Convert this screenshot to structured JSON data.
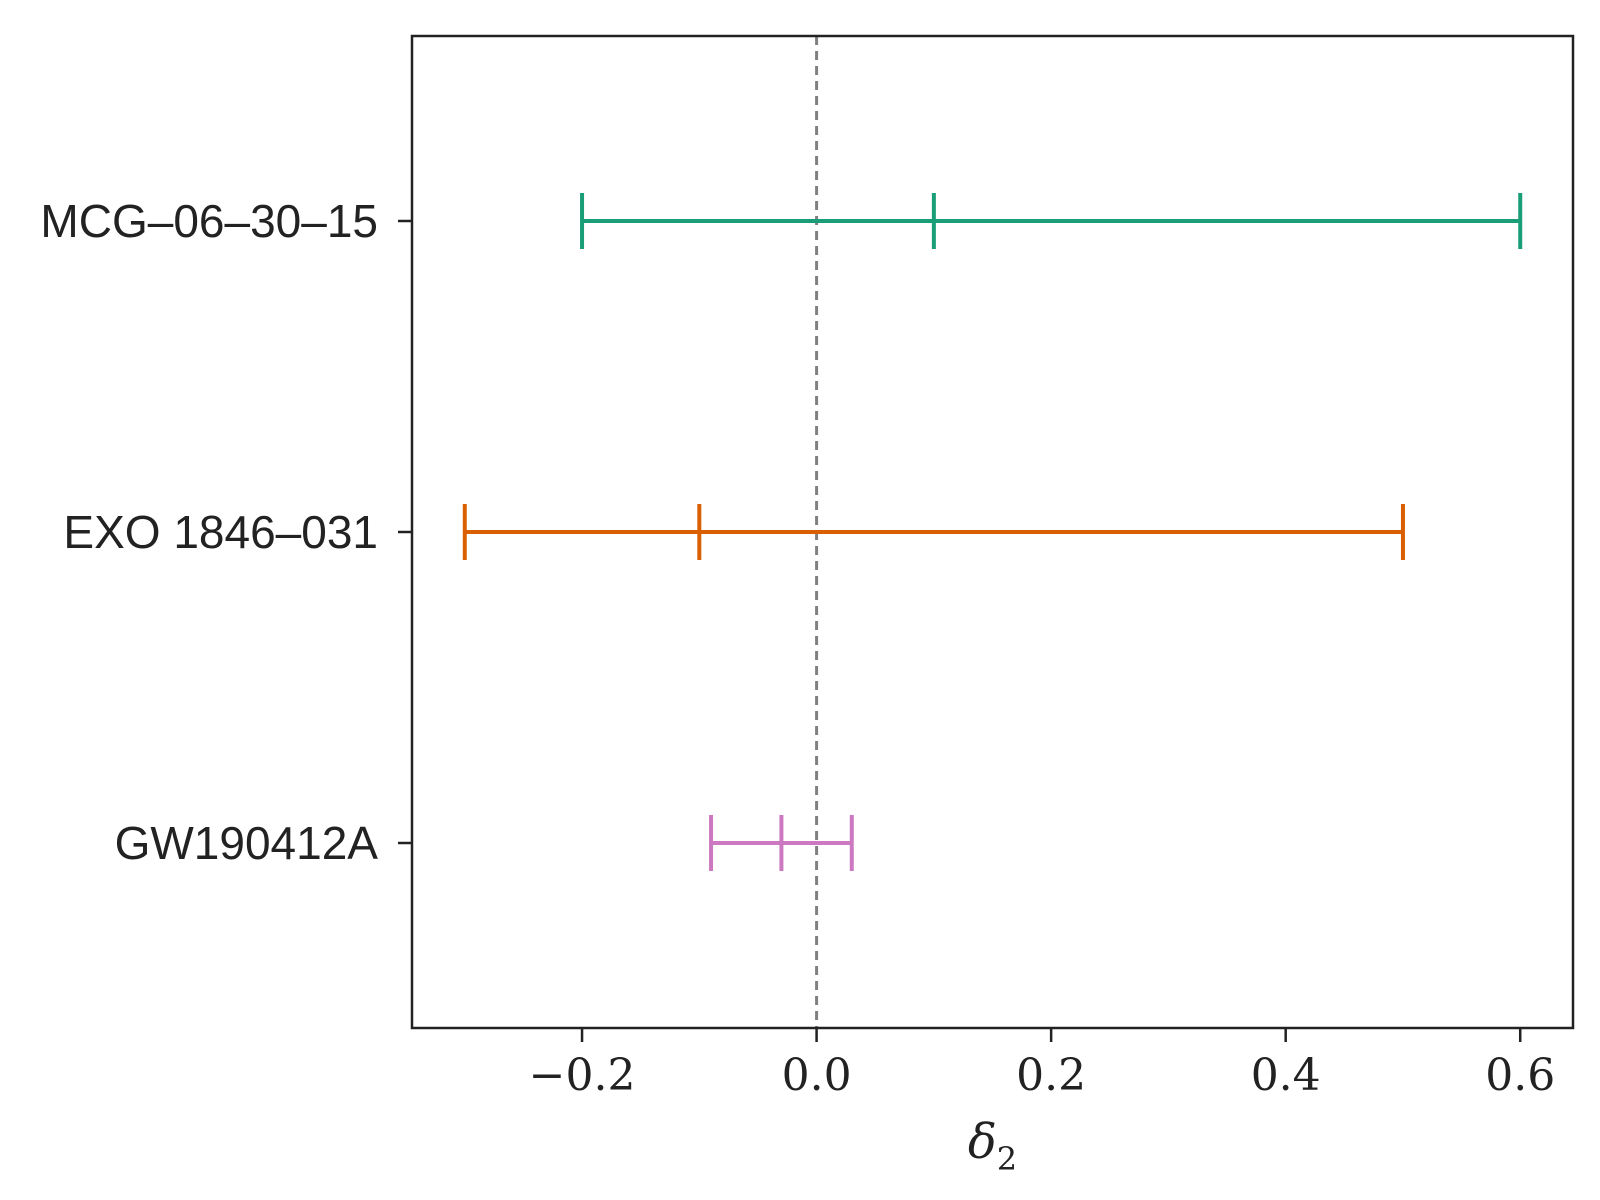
{
  "chart_data": {
    "type": "errorbar",
    "title": "",
    "xlabel": "δ",
    "xlabel_subscript": "2",
    "ylabel": "",
    "xlim": [
      -0.345,
      0.645
    ],
    "xticks": [
      -0.2,
      0.0,
      0.2,
      0.4,
      0.6
    ],
    "xtick_labels": [
      "−0.2",
      "0.0",
      "0.2",
      "0.4",
      "0.6"
    ],
    "reference_line": {
      "x": 0.0,
      "style": "dashed",
      "color": "#808080"
    },
    "grid": false,
    "legend": "none",
    "categories": [
      "MCG–06–30–15",
      "EXO 1846–031",
      "GW190412A"
    ],
    "series": [
      {
        "category": "MCG–06–30–15",
        "center": 0.1,
        "low": -0.2,
        "high": 0.6,
        "color": "#1a9e77"
      },
      {
        "category": "EXO 1846–031",
        "center": -0.1,
        "low": -0.3,
        "high": 0.5,
        "color": "#d95f02"
      },
      {
        "category": "GW190412A",
        "center": -0.03,
        "low": -0.09,
        "high": 0.03,
        "color": "#cc79c1"
      }
    ]
  }
}
